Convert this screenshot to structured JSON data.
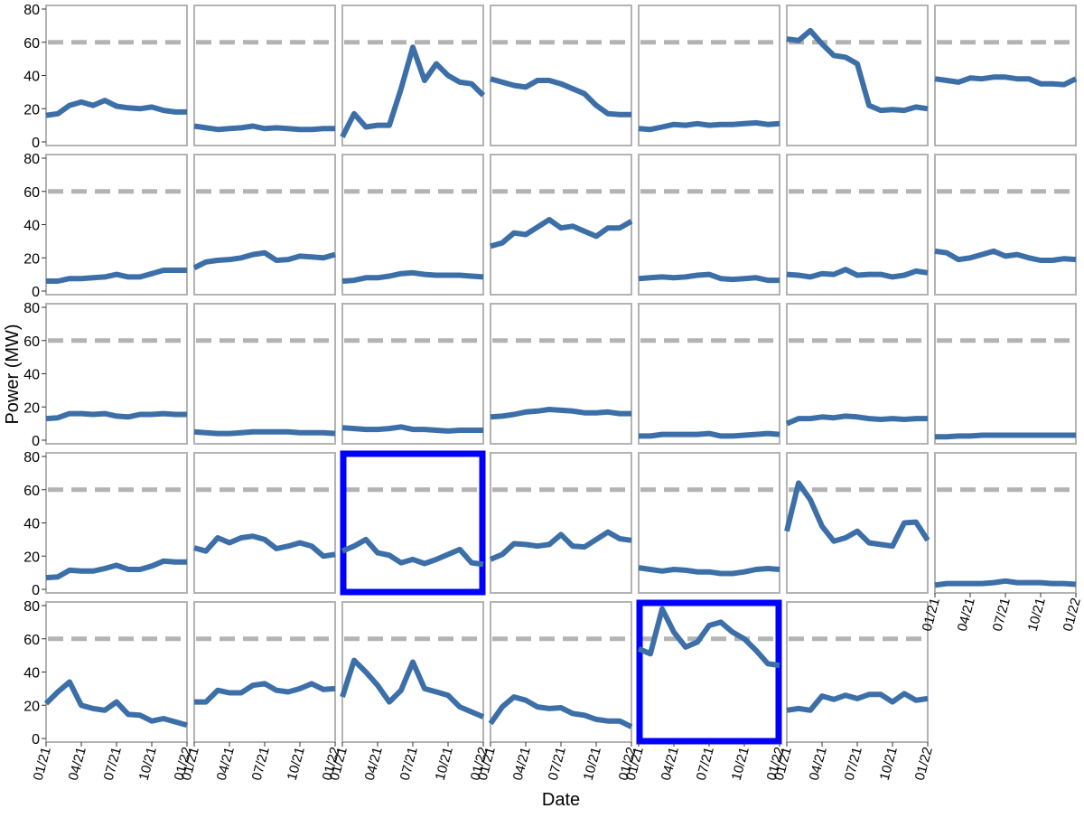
{
  "chart_data": {
    "type": "line",
    "ylabel": "Power (MW)",
    "xlabel": "Date",
    "ylim": [
      0,
      80
    ],
    "yticks": [
      0,
      20,
      40,
      60,
      80
    ],
    "xlim": [
      "2021-01",
      "2022-01"
    ],
    "xticks": [
      "2021-01",
      "2021-04",
      "2021-07",
      "2021-10",
      "2022-01"
    ],
    "xtick_labels": [
      "01/21",
      "04/21",
      "07/21",
      "10/21",
      "01/22"
    ],
    "x": [
      "2021-01",
      "2021-02",
      "2021-03",
      "2021-04",
      "2021-05",
      "2021-06",
      "2021-07",
      "2021-08",
      "2021-09",
      "2021-10",
      "2021-11",
      "2021-12",
      "2022-01"
    ],
    "reference_line": 60,
    "grid": false,
    "layout": {
      "rows": 5,
      "cols": 7
    },
    "colors": {
      "line": "#3c6fa8",
      "reference": "#b3b3b3",
      "highlight": "#0000ff",
      "panel_border": "#b3b3b3"
    },
    "panels": [
      {
        "values": [
          16,
          17,
          22,
          24,
          22,
          25,
          21.5,
          20.5,
          20,
          21,
          19,
          18,
          18
        ],
        "highlight": false
      },
      {
        "values": [
          9.5,
          8.5,
          7.5,
          8,
          8.5,
          9.5,
          8,
          8.5,
          8,
          7.5,
          7.5,
          8,
          8
        ],
        "highlight": false
      },
      {
        "values": [
          3,
          17,
          9,
          10,
          10,
          32,
          57,
          37,
          47,
          40,
          36,
          35,
          28
        ],
        "highlight": false
      },
      {
        "values": [
          38,
          36,
          34,
          33,
          37,
          37,
          35,
          32,
          29,
          22,
          17,
          16.5,
          16.5
        ],
        "highlight": false
      },
      {
        "values": [
          8,
          7.5,
          9,
          10.5,
          10,
          11,
          10,
          10.5,
          10.5,
          11,
          11.5,
          10.5,
          11
        ],
        "highlight": false
      },
      {
        "values": [
          62,
          61,
          67,
          59,
          52,
          51,
          47,
          22,
          19,
          19.5,
          19,
          21,
          20
        ],
        "highlight": false
      },
      {
        "values": [
          38,
          37,
          36,
          38.5,
          38,
          39,
          39,
          38,
          38,
          35,
          35,
          34.5,
          38
        ],
        "highlight": false
      },
      {
        "values": [
          6,
          6,
          7.5,
          7.5,
          8,
          8.5,
          10,
          8.5,
          8.5,
          10.5,
          12.5,
          12.5,
          12.5
        ],
        "highlight": false
      },
      {
        "values": [
          14,
          17.5,
          18.5,
          19,
          20,
          22,
          23,
          18.5,
          19,
          21,
          20.5,
          20,
          22
        ],
        "highlight": false
      },
      {
        "values": [
          6,
          6.5,
          8,
          8,
          9,
          10.5,
          11,
          10,
          9.5,
          9.5,
          9.5,
          9,
          8.5
        ],
        "highlight": false
      },
      {
        "values": [
          27,
          29,
          35,
          34,
          38.5,
          43,
          38,
          39,
          36,
          33,
          38,
          38,
          42
        ],
        "highlight": false
      },
      {
        "values": [
          7.5,
          8,
          8.5,
          8,
          8.5,
          9.5,
          10,
          7.5,
          7,
          7.5,
          8,
          6.5,
          6.5
        ],
        "highlight": false
      },
      {
        "values": [
          10,
          9.5,
          8.5,
          10.5,
          10,
          13,
          9.5,
          10,
          10,
          8.5,
          9.5,
          12,
          11
        ],
        "highlight": false
      },
      {
        "values": [
          24,
          23,
          19,
          20,
          22,
          24,
          21,
          22,
          20,
          18.5,
          18.5,
          19.5,
          19
        ],
        "highlight": false
      },
      {
        "values": [
          13,
          13.5,
          16,
          16,
          15.5,
          16,
          14.5,
          14,
          15.5,
          15.5,
          16,
          15.5,
          15.5
        ],
        "highlight": false
      },
      {
        "values": [
          5,
          4.5,
          4,
          4,
          4.5,
          5,
          5,
          5,
          5,
          4.5,
          4.5,
          4.5,
          4
        ],
        "highlight": false
      },
      {
        "values": [
          7.5,
          7,
          6.5,
          6.5,
          7,
          8,
          6.5,
          6.5,
          6,
          5.5,
          6,
          6,
          6
        ],
        "highlight": false
      },
      {
        "values": [
          14,
          14.5,
          15.5,
          17,
          17.5,
          18.5,
          18,
          17.5,
          16.5,
          16.5,
          17,
          16,
          16
        ],
        "highlight": false
      },
      {
        "values": [
          2.5,
          2.5,
          3.5,
          3.5,
          3.5,
          3.5,
          4,
          2.5,
          2.5,
          3,
          3.5,
          4,
          3.5
        ],
        "highlight": false
      },
      {
        "values": [
          10,
          13,
          13,
          14,
          13.5,
          14.5,
          14,
          13,
          12.5,
          13,
          12.5,
          13,
          13
        ],
        "highlight": false
      },
      {
        "values": [
          2,
          2,
          2.5,
          2.5,
          3,
          3,
          3,
          3,
          3,
          3,
          3,
          3,
          3
        ],
        "highlight": false
      },
      {
        "values": [
          7,
          7.5,
          11.5,
          11,
          11,
          12.5,
          14.5,
          12,
          12,
          14,
          17,
          16.5,
          16.5
        ],
        "highlight": false
      },
      {
        "values": [
          25,
          23,
          31,
          28,
          31,
          32,
          30,
          24.5,
          26,
          28,
          26,
          20,
          21
        ],
        "highlight": false
      },
      {
        "values": [
          23,
          26,
          30,
          22,
          20.5,
          16,
          18,
          15.5,
          18,
          21,
          24,
          16,
          15
        ],
        "highlight": true
      },
      {
        "values": [
          18,
          21,
          27.5,
          27,
          26,
          27,
          33,
          26,
          25.5,
          30,
          34.5,
          30.5,
          29.5
        ],
        "highlight": false
      },
      {
        "values": [
          13,
          12,
          11,
          12,
          11.5,
          10.5,
          10.5,
          9.5,
          9.5,
          10.5,
          12,
          12.5,
          12
        ],
        "highlight": false
      },
      {
        "values": [
          35,
          64,
          54,
          38,
          29,
          31,
          35,
          28,
          27,
          26,
          40,
          40.5,
          29.5
        ],
        "highlight": false
      },
      {
        "values": [
          2.5,
          3.5,
          3.5,
          3.5,
          3.5,
          4,
          5,
          4,
          4,
          4,
          3.5,
          3.5,
          3
        ],
        "highlight": false
      },
      {
        "values": [
          21,
          28,
          34,
          20,
          18,
          17,
          22,
          14.5,
          14,
          10.5,
          12,
          10,
          8
        ],
        "highlight": false
      },
      {
        "values": [
          22,
          22,
          29,
          27.5,
          27.5,
          32,
          33,
          29,
          28,
          30,
          33,
          29.5,
          30
        ],
        "highlight": false
      },
      {
        "values": [
          25,
          47,
          40,
          32,
          22,
          29,
          46,
          30,
          28,
          26,
          19,
          16,
          13
        ],
        "highlight": false
      },
      {
        "values": [
          9,
          19,
          25,
          23,
          19,
          18,
          18.5,
          15,
          14,
          11.5,
          10.5,
          10.5,
          7
        ],
        "highlight": false
      },
      {
        "values": [
          54,
          51,
          78,
          64,
          55,
          58,
          68,
          70,
          64,
          60,
          53,
          45,
          44
        ],
        "highlight": true
      },
      {
        "values": [
          17,
          18,
          17,
          25.5,
          23.5,
          26,
          24,
          26.5,
          26.5,
          22,
          27,
          23,
          24
        ],
        "highlight": false
      }
    ]
  }
}
